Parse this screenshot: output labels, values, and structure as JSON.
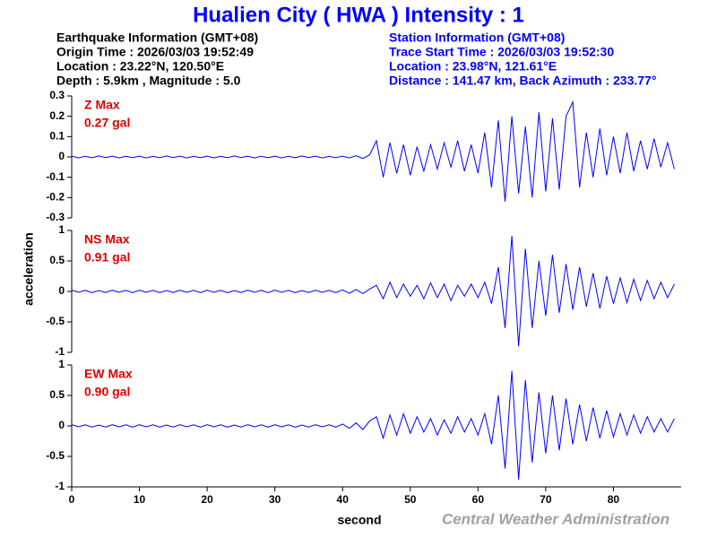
{
  "title": "Hualien City ( HWA ) Intensity : 1",
  "earthquake_info": [
    "Earthquake Information  (GMT+08)",
    "Origin Time : 2026/03/03 19:52:49",
    "Location : 23.22°N, 120.50°E",
    "Depth : 5.9km , Magnitude : 5.0"
  ],
  "station_info": [
    "Station Information  (GMT+08)",
    "Trace Start Time : 2026/03/03 19:52:30",
    "Location : 23.98°N, 121.61°E",
    "Distance : 141.47 km, Back Azimuth : 233.77°"
  ],
  "footer": "Central Weather Administration",
  "chart_data": [
    {
      "type": "line",
      "max_label": "Z Max",
      "max_value_label": "0.27 gal",
      "color": "#0000ff",
      "xlim": [
        0,
        90
      ],
      "ylim": [
        -0.3,
        0.3
      ],
      "yticks": [
        -0.3,
        -0.2,
        -0.1,
        0,
        0.1,
        0.2,
        0.3
      ],
      "x": [
        0,
        1,
        2,
        3,
        4,
        5,
        6,
        7,
        8,
        9,
        10,
        11,
        12,
        13,
        14,
        15,
        16,
        17,
        18,
        19,
        20,
        21,
        22,
        23,
        24,
        25,
        26,
        27,
        28,
        29,
        30,
        31,
        32,
        33,
        34,
        35,
        36,
        37,
        38,
        39,
        40,
        41,
        42,
        43,
        44,
        45,
        46,
        47,
        48,
        49,
        50,
        51,
        52,
        53,
        54,
        55,
        56,
        57,
        58,
        59,
        60,
        61,
        62,
        63,
        64,
        65,
        66,
        67,
        68,
        69,
        70,
        71,
        72,
        73,
        74,
        75,
        76,
        77,
        78,
        79,
        80,
        81,
        82,
        83,
        84,
        85,
        86,
        87,
        88,
        89
      ],
      "values": [
        0.004,
        -0.005,
        0.003,
        -0.004,
        0.005,
        -0.003,
        0.004,
        -0.005,
        0.003,
        -0.004,
        0.004,
        -0.005,
        0.003,
        -0.004,
        0.005,
        -0.003,
        0.004,
        -0.005,
        0.003,
        -0.004,
        0.004,
        -0.005,
        0.003,
        -0.004,
        0.005,
        -0.003,
        0.004,
        -0.005,
        0.003,
        -0.004,
        0.004,
        -0.005,
        0.003,
        -0.004,
        0.005,
        -0.003,
        0.004,
        -0.005,
        0.003,
        -0.004,
        0.004,
        -0.005,
        0.006,
        -0.008,
        0.01,
        0.08,
        -0.1,
        0.07,
        -0.08,
        0.06,
        -0.09,
        0.05,
        -0.07,
        0.06,
        -0.06,
        0.07,
        -0.05,
        0.08,
        -0.07,
        0.06,
        -0.08,
        0.12,
        -0.15,
        0.18,
        -0.22,
        0.2,
        -0.18,
        0.15,
        -0.2,
        0.22,
        -0.17,
        0.19,
        -0.16,
        0.2,
        0.27,
        -0.15,
        0.12,
        -0.1,
        0.14,
        -0.09,
        0.1,
        -0.08,
        0.12,
        -0.07,
        0.08,
        -0.06,
        0.09,
        -0.05,
        0.07,
        -0.06
      ]
    },
    {
      "type": "line",
      "max_label": "NS Max",
      "max_value_label": "0.91 gal",
      "color": "#0000ff",
      "ylabel": "acceleration",
      "xlim": [
        0,
        90
      ],
      "ylim": [
        -1,
        1
      ],
      "yticks": [
        -1,
        -0.5,
        0,
        0.5,
        1
      ],
      "x": [
        0,
        1,
        2,
        3,
        4,
        5,
        6,
        7,
        8,
        9,
        10,
        11,
        12,
        13,
        14,
        15,
        16,
        17,
        18,
        19,
        20,
        21,
        22,
        23,
        24,
        25,
        26,
        27,
        28,
        29,
        30,
        31,
        32,
        33,
        34,
        35,
        36,
        37,
        38,
        39,
        40,
        41,
        42,
        43,
        44,
        45,
        46,
        47,
        48,
        49,
        50,
        51,
        52,
        53,
        54,
        55,
        56,
        57,
        58,
        59,
        60,
        61,
        62,
        63,
        64,
        65,
        66,
        67,
        68,
        69,
        70,
        71,
        72,
        73,
        74,
        75,
        76,
        77,
        78,
        79,
        80,
        81,
        82,
        83,
        84,
        85,
        86,
        87,
        88,
        89
      ],
      "values": [
        0.02,
        -0.015,
        0.018,
        -0.02,
        0.015,
        -0.018,
        0.02,
        -0.015,
        0.018,
        -0.02,
        0.02,
        -0.015,
        0.018,
        -0.02,
        0.015,
        -0.018,
        0.02,
        -0.015,
        0.018,
        -0.02,
        0.02,
        -0.015,
        0.018,
        -0.02,
        0.015,
        -0.018,
        0.02,
        -0.015,
        0.018,
        -0.02,
        0.02,
        -0.015,
        0.018,
        -0.02,
        0.015,
        -0.018,
        0.02,
        -0.015,
        0.018,
        -0.02,
        0.025,
        -0.03,
        0.03,
        -0.035,
        0.04,
        0.1,
        -0.12,
        0.15,
        -0.1,
        0.12,
        -0.08,
        0.1,
        -0.12,
        0.14,
        -0.1,
        0.12,
        -0.15,
        0.1,
        -0.08,
        0.12,
        -0.1,
        0.15,
        -0.2,
        0.4,
        -0.6,
        0.91,
        -0.9,
        0.7,
        -0.6,
        0.5,
        -0.4,
        0.6,
        -0.35,
        0.45,
        -0.3,
        0.4,
        -0.25,
        0.3,
        -0.28,
        0.25,
        -0.2,
        0.22,
        -0.18,
        0.2,
        -0.15,
        0.18,
        -0.12,
        0.15,
        -0.1,
        0.12
      ]
    },
    {
      "type": "line",
      "max_label": "EW Max",
      "max_value_label": "0.90 gal",
      "color": "#0000ff",
      "xlabel": "second",
      "xlim": [
        0,
        90
      ],
      "xticks": [
        0,
        10,
        20,
        30,
        40,
        50,
        60,
        70,
        80
      ],
      "ylim": [
        -1,
        1
      ],
      "yticks": [
        -1,
        -0.5,
        0,
        0.5,
        1
      ],
      "x": [
        0,
        1,
        2,
        3,
        4,
        5,
        6,
        7,
        8,
        9,
        10,
        11,
        12,
        13,
        14,
        15,
        16,
        17,
        18,
        19,
        20,
        21,
        22,
        23,
        24,
        25,
        26,
        27,
        28,
        29,
        30,
        31,
        32,
        33,
        34,
        35,
        36,
        37,
        38,
        39,
        40,
        41,
        42,
        43,
        44,
        45,
        46,
        47,
        48,
        49,
        50,
        51,
        52,
        53,
        54,
        55,
        56,
        57,
        58,
        59,
        60,
        61,
        62,
        63,
        64,
        65,
        66,
        67,
        68,
        69,
        70,
        71,
        72,
        73,
        74,
        75,
        76,
        77,
        78,
        79,
        80,
        81,
        82,
        83,
        84,
        85,
        86,
        87,
        88,
        89
      ],
      "values": [
        0.02,
        -0.015,
        0.018,
        -0.02,
        0.015,
        -0.018,
        0.02,
        -0.015,
        0.018,
        -0.02,
        0.02,
        -0.015,
        0.018,
        -0.02,
        0.015,
        -0.018,
        0.02,
        -0.015,
        0.018,
        -0.02,
        0.02,
        -0.015,
        0.018,
        -0.02,
        0.015,
        -0.018,
        0.02,
        -0.015,
        0.018,
        -0.02,
        0.02,
        -0.015,
        0.018,
        -0.02,
        0.015,
        -0.018,
        0.02,
        -0.015,
        0.018,
        -0.02,
        0.03,
        -0.04,
        0.05,
        -0.06,
        0.08,
        0.15,
        -0.2,
        0.18,
        -0.15,
        0.2,
        -0.12,
        0.15,
        -0.1,
        0.12,
        -0.15,
        0.1,
        -0.12,
        0.15,
        -0.1,
        0.12,
        -0.15,
        0.2,
        -0.3,
        0.5,
        -0.7,
        0.9,
        -0.88,
        0.75,
        -0.6,
        0.55,
        -0.45,
        0.5,
        -0.4,
        0.45,
        -0.3,
        0.35,
        -0.25,
        0.3,
        -0.2,
        0.25,
        -0.18,
        0.2,
        -0.15,
        0.18,
        -0.12,
        0.15,
        -0.1,
        0.12,
        -0.1,
        0.12
      ]
    }
  ]
}
